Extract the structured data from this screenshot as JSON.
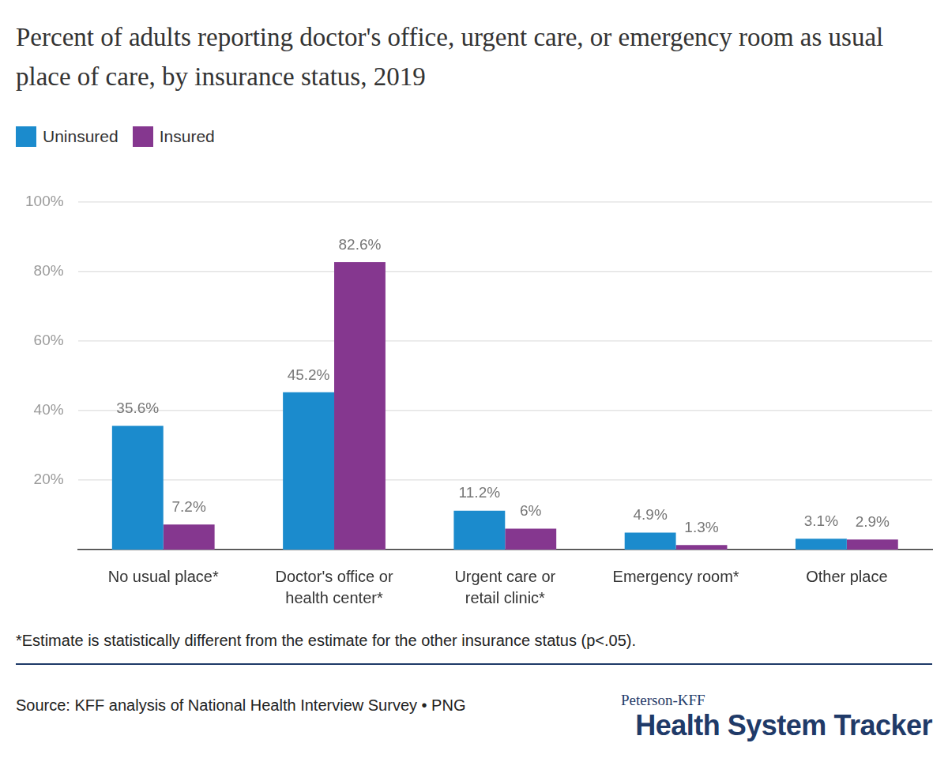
{
  "chart_data": {
    "type": "bar",
    "title": "Percent of adults reporting doctor's office, urgent care, or emergency room as usual place of care, by insurance status, 2019",
    "categories": [
      [
        "No usual place*"
      ],
      [
        "Doctor's office or",
        "health center*"
      ],
      [
        "Urgent care or",
        "retail clinic*"
      ],
      [
        "Emergency room*"
      ],
      [
        "Other place"
      ]
    ],
    "series": [
      {
        "name": "Uninsured",
        "color": "#1b8bcd",
        "values": [
          35.6,
          45.2,
          11.2,
          4.9,
          3.1
        ],
        "value_labels": [
          "35.6%",
          "45.2%",
          "11.2%",
          "4.9%",
          "3.1%"
        ]
      },
      {
        "name": "Insured",
        "color": "#85378f",
        "values": [
          7.2,
          82.6,
          6,
          1.3,
          2.9
        ],
        "value_labels": [
          "7.2%",
          "82.6%",
          "6%",
          "1.3%",
          "2.9%"
        ]
      }
    ],
    "ylim": [
      0,
      100
    ],
    "yticks": [
      {
        "value": 20,
        "label": "20%"
      },
      {
        "value": 40,
        "label": "40%"
      },
      {
        "value": 60,
        "label": "60%"
      },
      {
        "value": 80,
        "label": "80%"
      },
      {
        "value": 100,
        "label": "100%"
      }
    ],
    "grid": true,
    "legend": "top-left",
    "data_labels": true,
    "footnote": "*Estimate is statistically different from the estimate for the other insurance status (p<.05).",
    "source": "Source: KFF analysis of National Health Interview Survey • PNG",
    "logo": [
      "Peterson-KFF",
      "Health System Tracker"
    ]
  }
}
